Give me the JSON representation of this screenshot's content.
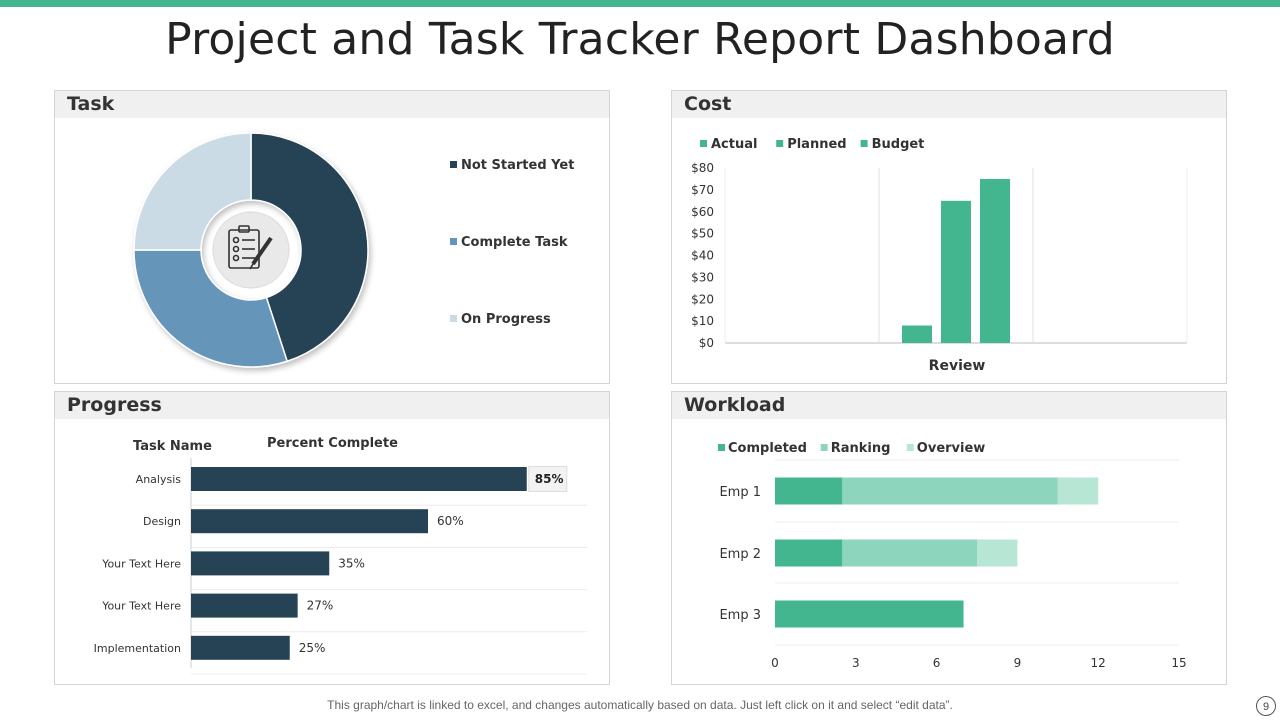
{
  "page": {
    "title": "Project and Task Tracker Report Dashboard",
    "footer": "This graph/chart is linked to excel, and changes automatically based on data. Just left click on it and select “edit data”.",
    "page_number": "9",
    "accent_color": "#43b58f"
  },
  "panels": {
    "task": "Task",
    "cost": "Cost",
    "progress": "Progress",
    "workload": "Workload"
  },
  "chart_data": [
    {
      "id": "task",
      "type": "pie",
      "title": "Task",
      "center_icon": "checklist-pen-icon",
      "slices": [
        {
          "label": "Not Started Yet",
          "value": 45,
          "color": "#264355"
        },
        {
          "label": "Complete Task",
          "value": 30,
          "color": "#6596b9"
        },
        {
          "label": "On Progress",
          "value": 25,
          "color": "#cbdbe6"
        }
      ]
    },
    {
      "id": "cost",
      "type": "bar",
      "title": "Cost",
      "categories": [
        "",
        "Review",
        ""
      ],
      "xlabel": "Review",
      "series": [
        {
          "name": "Actual",
          "values": [
            0,
            8,
            0
          ],
          "color": "#43b58f"
        },
        {
          "name": "Planned",
          "values": [
            0,
            65,
            0
          ],
          "color": "#43b58f"
        },
        {
          "name": "Budget",
          "values": [
            0,
            75,
            0
          ],
          "color": "#43b58f"
        }
      ],
      "ylim": [
        0,
        80
      ],
      "yticks": [
        "$0",
        "$10",
        "$20",
        "$30",
        "$40",
        "$50",
        "$60",
        "$70",
        "$80"
      ]
    },
    {
      "id": "progress",
      "type": "bar",
      "orientation": "horizontal",
      "title": "Progress",
      "column_headers": [
        "Task Name",
        "Percent Complete"
      ],
      "categories": [
        "Analysis",
        "Design",
        "Your Text Here",
        "Your Text Here",
        "Implementation"
      ],
      "values": [
        85,
        60,
        35,
        27,
        25
      ],
      "labels": [
        "85%",
        "60%",
        "35%",
        "27%",
        "25%"
      ],
      "bar_color": "#264355",
      "xlim": [
        0,
        100
      ]
    },
    {
      "id": "workload",
      "type": "bar",
      "orientation": "horizontal",
      "stacked": true,
      "title": "Workload",
      "categories": [
        "Emp 1",
        "Emp 2",
        "Emp 3"
      ],
      "series": [
        {
          "name": "Completed",
          "values": [
            2.5,
            2.5,
            7
          ],
          "color": "#43b58f"
        },
        {
          "name": "Ranking",
          "values": [
            8,
            5,
            0
          ],
          "color": "#8dd6bd"
        },
        {
          "name": "Overview",
          "values": [
            1.5,
            1.5,
            0
          ],
          "color": "#b7e6d5"
        }
      ],
      "xlim": [
        0,
        15
      ],
      "xticks": [
        "0",
        "3",
        "6",
        "9",
        "12",
        "15"
      ]
    }
  ]
}
